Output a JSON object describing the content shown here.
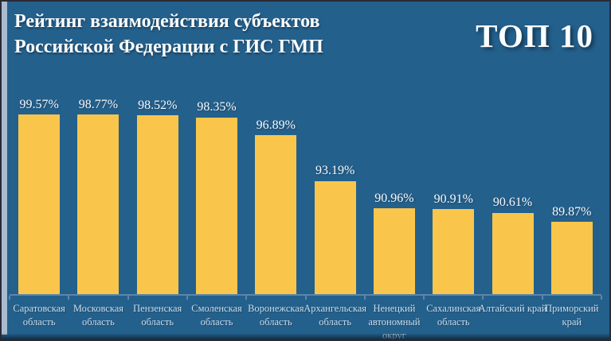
{
  "header": {
    "title_lines": [
      "Рейтинг взаимодействия субъектов",
      "Российской Федерации с ГИС ГМП"
    ],
    "badge": "ТОП 10"
  },
  "chart_data": {
    "type": "bar",
    "title": "Рейтинг взаимодействия субъектов Российской Федерации с ГИС ГМП",
    "subtitle": "ТОП 10",
    "categories": [
      "Саратовская область",
      "Московская область",
      "Пензенская область",
      "Смоленская область",
      "Воронежская область",
      "Архангельская область",
      "Ненецкий автономный округ",
      "Сахалинская область",
      "Алтайский край",
      "Приморский край"
    ],
    "values": [
      99.57,
      98.77,
      98.52,
      98.35,
      96.89,
      93.19,
      90.96,
      90.91,
      90.61,
      89.87
    ],
    "value_labels": [
      "99.57%",
      "98.77%",
      "98.52%",
      "98.35%",
      "96.89%",
      "93.19%",
      "90.96%",
      "90.91%",
      "90.61%",
      "89.87%"
    ],
    "value_suffix": "%",
    "xlabel": "",
    "ylabel": "",
    "ylim": [
      84,
      100
    ],
    "grid": false,
    "legend": "none",
    "bar_color": "#f9c64b"
  },
  "colors": {
    "background": "#24608c",
    "bar": "#f9c64b",
    "axis": "#5c86a9",
    "title_text": "#fbfdfe",
    "category_text": "#cadceb",
    "strip": "#a9bbd1",
    "frame_border": "#2a2a33"
  }
}
